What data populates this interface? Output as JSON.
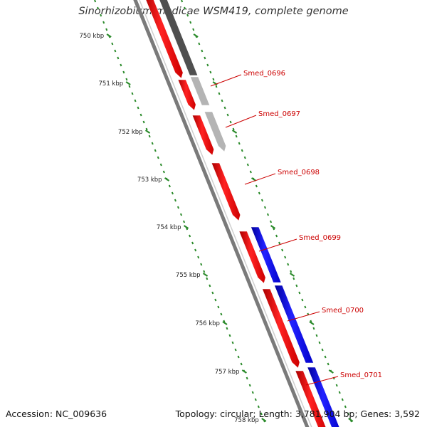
{
  "title": "Sinorhizobium medicae WSM419, complete genome",
  "footer": {
    "accession": "Accession: NC_009636",
    "summary": "Topology: circular; Length: 3,781,904 bp; Genes: 3,592"
  },
  "colors": {
    "forward_cds": "#ee0000",
    "reverse_cds": "#0000dd",
    "gene_dark": "#555555",
    "gene_light": "#bbbbbb",
    "backbone": "#888888",
    "tick": "#2a8a2a",
    "label": "#cc0000"
  },
  "ticks": [
    {
      "label": "750 kbp"
    },
    {
      "label": "751 kbp"
    },
    {
      "label": "752 kbp"
    },
    {
      "label": "753 kbp"
    },
    {
      "label": "754 kbp"
    },
    {
      "label": "755 kbp"
    },
    {
      "label": "756 kbp"
    },
    {
      "label": "757 kbp"
    },
    {
      "label": "758 kbp"
    }
  ],
  "genes": [
    {
      "name": "Smed_0696"
    },
    {
      "name": "Smed_0697"
    },
    {
      "name": "Smed_0698"
    },
    {
      "name": "Smed_0699"
    },
    {
      "name": "Smed_0700"
    },
    {
      "name": "Smed_0701"
    }
  ]
}
